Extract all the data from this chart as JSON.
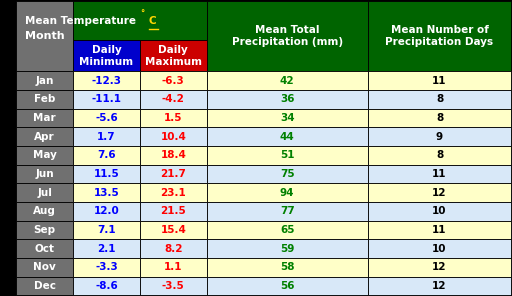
{
  "months": [
    "Jan",
    "Feb",
    "Mar",
    "Apr",
    "May",
    "Jun",
    "Jul",
    "Aug",
    "Sep",
    "Oct",
    "Nov",
    "Dec"
  ],
  "daily_min": [
    -12.3,
    -11.1,
    -5.6,
    1.7,
    7.6,
    11.5,
    13.5,
    12.0,
    7.1,
    2.1,
    -3.3,
    -8.6
  ],
  "daily_max": [
    -6.3,
    -4.2,
    1.5,
    10.4,
    18.4,
    21.7,
    23.1,
    21.5,
    15.4,
    8.2,
    1.1,
    -3.5
  ],
  "precipitation": [
    42,
    36,
    34,
    44,
    51,
    75,
    94,
    77,
    65,
    59,
    58,
    56
  ],
  "precip_days": [
    11,
    8,
    8,
    9,
    8,
    11,
    12,
    10,
    11,
    10,
    12,
    12
  ],
  "header_bg": "#006400",
  "header_text": "#FFFFFF",
  "subheader_min_bg": "#0000CC",
  "subheader_max_bg": "#CC0000",
  "subheader_text": "#FFFFFF",
  "month_bg": "#707070",
  "month_text": "#FFFFFF",
  "row_bg_odd": "#FFFFC8",
  "row_bg_even": "#D8E8F8",
  "min_text_color": "#0000FF",
  "max_text_color": "#FF0000",
  "precip_text_color": "#008000",
  "precip_days_text_color": "#000000",
  "border_color": "#000000",
  "col1_header": "Month",
  "col3_header": "Mean Total\nPrecipitation (mm)",
  "col4_header": "Mean Number of\nPrecipitation Days",
  "sub2_header": "Daily\nMinimum",
  "sub3_header": "Daily\nMaximum"
}
